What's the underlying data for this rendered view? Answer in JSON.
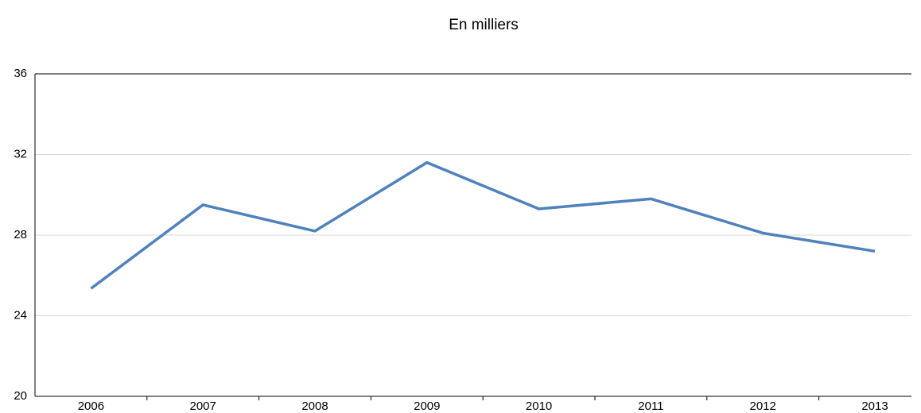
{
  "chart_data": {
    "type": "line",
    "title": "En milliers",
    "categories": [
      "2006",
      "2007",
      "2008",
      "2009",
      "2010",
      "2011",
      "2012",
      "2013"
    ],
    "values": [
      25.35,
      29.5,
      28.2,
      31.6,
      29.3,
      29.8,
      28.1,
      27.2
    ],
    "color": "#4f81bd",
    "ylim": [
      20,
      36
    ],
    "yticks": [
      20,
      24,
      28,
      32,
      36
    ],
    "grid": true
  }
}
